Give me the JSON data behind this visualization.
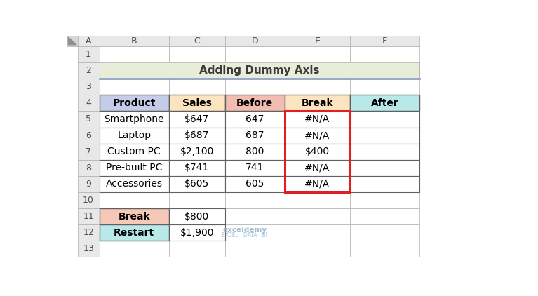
{
  "title": "Adding Dummy Axis",
  "title_bg": "#e8edda",
  "title_line_color": "#8ea0c8",
  "col_headers": [
    "Product",
    "Sales",
    "Before",
    "Break",
    "After"
  ],
  "col_header_bg": [
    "#c5cce8",
    "#fce4c0",
    "#f2bdb0",
    "#fce4c0",
    "#b8e8e8"
  ],
  "rows": [
    [
      "Smartphone",
      "$647",
      "647",
      "#N/A",
      ""
    ],
    [
      "Laptop",
      "$687",
      "687",
      "#N/A",
      ""
    ],
    [
      "Custom PC",
      "$2,100",
      "800",
      "$400",
      ""
    ],
    [
      "Pre-built PC",
      "$741",
      "741",
      "#N/A",
      ""
    ],
    [
      "Accessories",
      "$605",
      "605",
      "#N/A",
      ""
    ]
  ],
  "break_restart_headers": [
    "Break",
    "Restart"
  ],
  "break_restart_header_bg": [
    "#f5c8b8",
    "#b8e8e8"
  ],
  "break_restart_values": [
    "$800",
    "$1,900"
  ],
  "excel_col_labels": [
    "A",
    "B",
    "C",
    "D",
    "E",
    "F"
  ],
  "excel_row_labels": [
    "1",
    "2",
    "3",
    "4",
    "5",
    "6",
    "7",
    "8",
    "9",
    "10",
    "11",
    "12",
    "13"
  ],
  "red_border_color": "#e02020",
  "header_bg": "#e8e8e8",
  "border_color": "#b0b0b0",
  "dark_border": "#606060",
  "watermark_text": "exceldemy",
  "watermark_sub": "EXCEL · DATA · BI"
}
